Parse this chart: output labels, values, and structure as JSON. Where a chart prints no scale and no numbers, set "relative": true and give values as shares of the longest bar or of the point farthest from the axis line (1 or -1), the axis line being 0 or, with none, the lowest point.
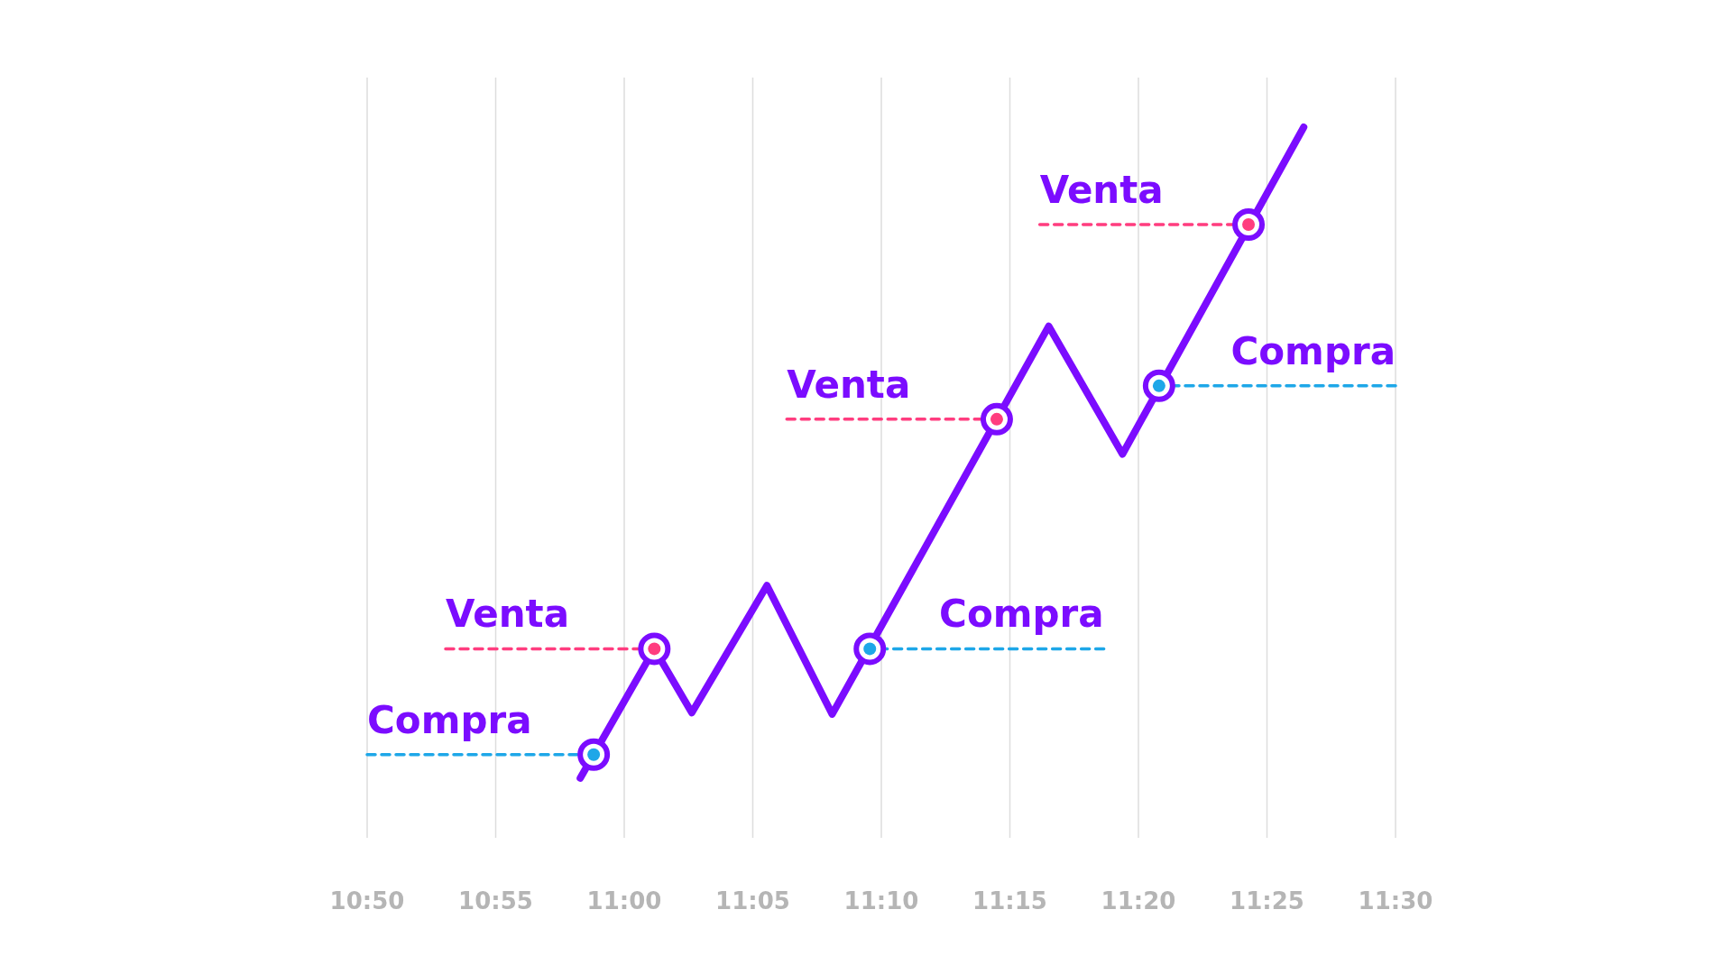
{
  "chart_data": {
    "type": "line",
    "relative": true,
    "grid": "x",
    "tick_labels": "x",
    "xlim": [
      10.833333,
      11.5
    ],
    "xticks": [
      {
        "value": 10.833333,
        "label": "10:50"
      },
      {
        "value": 10.916667,
        "label": "10:55"
      },
      {
        "value": 11,
        "label": "11:00"
      },
      {
        "value": 11.083333,
        "label": "11:05"
      },
      {
        "value": 11.166667,
        "label": "11:10"
      },
      {
        "value": 11.25,
        "label": "11:15"
      },
      {
        "value": 11.333333,
        "label": "11:20"
      },
      {
        "value": 11.416667,
        "label": "11:25"
      },
      {
        "value": 11.5,
        "label": "11:30"
      }
    ],
    "series": [
      {
        "color": "#1ea7e8",
        "line_style": "dashed",
        "name": "Compra",
        "x": [
          10.833333,
          10.9802
        ],
        "values": [
          0.117,
          0.117
        ]
      },
      {
        "color": "#ff3d7f",
        "line_style": "dashed",
        "name": "Venta",
        "x": [
          10.8842,
          11.0195
        ],
        "values": [
          0.266,
          0.266
        ]
      },
      {
        "color": "#1ea7e8",
        "line_style": "dashed",
        "name": "Compra",
        "x": [
          11.3109,
          11.1592
        ],
        "values": [
          0.266,
          0.266
        ]
      },
      {
        "color": "#ff3d7f",
        "line_style": "dashed",
        "name": "Venta",
        "x": [
          11.1054,
          11.2415
        ],
        "values": [
          0.589,
          0.589
        ]
      },
      {
        "color": "#1ea7e8",
        "line_style": "dashed",
        "name": "Compra",
        "x": [
          11.5,
          11.3467
        ],
        "values": [
          0.636,
          0.636
        ]
      },
      {
        "color": "#ff3d7f",
        "line_style": "dashed",
        "name": "Venta",
        "x": [
          11.2694,
          11.4047
        ],
        "values": [
          0.863,
          0.863
        ]
      },
      {
        "color": "#7b0cff",
        "line_style": "solid",
        "x": [
          10.9715,
          11.0195,
          11.0438,
          11.0925,
          11.1348,
          11.2752,
          11.323,
          11.4405
        ],
        "values": [
          0.084,
          0.266,
          0.176,
          0.355,
          0.174,
          0.72,
          0.54,
          1
        ]
      },
      {
        "type": "scatter",
        "color": "#1ea7e8",
        "marker": "circle",
        "x": [
          10.9802,
          11.1592,
          11.3467
        ],
        "values": [
          0.117,
          0.266,
          0.636
        ]
      },
      {
        "type": "scatter",
        "color": "#ff3d7f",
        "marker": "circle",
        "x": [
          11.0195,
          11.2415,
          11.4047
        ],
        "values": [
          0.266,
          0.589,
          0.863
        ]
      }
    ]
  }
}
